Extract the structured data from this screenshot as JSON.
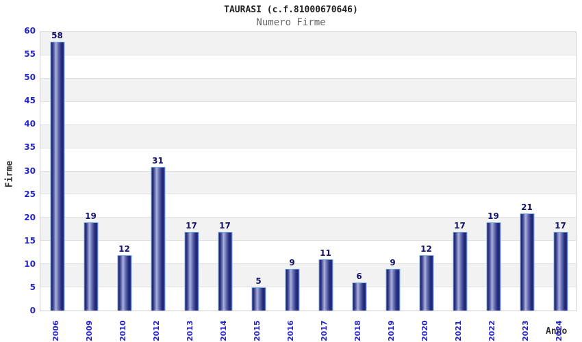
{
  "header": {
    "title": "TAURASI (c.f.81000670646)",
    "subtitle": "Numero Firme"
  },
  "chart_data": {
    "type": "bar",
    "title": "TAURASI (c.f.81000670646)",
    "subtitle": "Numero Firme",
    "xlabel": "Anno",
    "ylabel": "Firme",
    "categories": [
      "2006",
      "2009",
      "2010",
      "2012",
      "2013",
      "2014",
      "2015",
      "2016",
      "2017",
      "2018",
      "2019",
      "2020",
      "2021",
      "2022",
      "2023",
      "2024"
    ],
    "values": [
      58,
      19,
      12,
      31,
      17,
      17,
      5,
      9,
      11,
      6,
      9,
      12,
      17,
      19,
      21,
      17
    ],
    "ylim": [
      0,
      60
    ],
    "ytick_step": 5,
    "grid": "horizontal",
    "legend": "none",
    "colors": {
      "tick_label": "#2323cb",
      "value_label": "#14146b",
      "band_gray": "#f2f2f2",
      "band_white": "#ffffff",
      "gridline": "#e0e0e0",
      "plot_border": "#cfcfcf",
      "bar_dark": "#191d62",
      "bar_light": "#aab2dc",
      "bar_border": "#7ab0e0",
      "title_color": "#222222",
      "subtitle_color": "#666666"
    }
  }
}
